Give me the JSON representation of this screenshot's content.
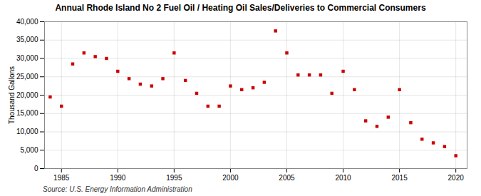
{
  "chart_data": {
    "type": "scatter",
    "title": "Annual Rhode Island No 2 Fuel Oil / Heating Oil Sales/Deliveries to Commercial Consumers",
    "ylabel": "Thousand Gallons",
    "annotations": [
      "Source: U.S. Energy Information Administration"
    ],
    "x": [
      1984,
      1985,
      1986,
      1987,
      1988,
      1989,
      1990,
      1991,
      1992,
      1993,
      1994,
      1995,
      1996,
      1997,
      1998,
      1999,
      2000,
      2001,
      2002,
      2003,
      2004,
      2005,
      2006,
      2007,
      2008,
      2009,
      2010,
      2011,
      2012,
      2013,
      2014,
      2015,
      2016,
      2017,
      2018,
      2019,
      2020
    ],
    "values": [
      19500,
      17000,
      28500,
      31500,
      30500,
      30000,
      26500,
      24500,
      23000,
      22500,
      24500,
      31500,
      24000,
      20500,
      17000,
      17000,
      22500,
      21500,
      22000,
      23500,
      37500,
      31500,
      25500,
      25500,
      25500,
      20500,
      26500,
      21500,
      13000,
      11500,
      14000,
      21500,
      12500,
      8000,
      7000,
      6000,
      3500
    ],
    "color": "#cc0000",
    "marker": "square",
    "xlim": [
      1983.5,
      2021
    ],
    "xticks": [
      1985,
      1990,
      1995,
      2000,
      2005,
      2010,
      2015,
      2020
    ],
    "ylim": [
      0,
      40000
    ],
    "yticks": [
      0,
      {
        "value": 5000,
        "label": "5,000"
      },
      {
        "value": 10000,
        "label": "10,000"
      },
      {
        "value": 15000,
        "label": "15,000"
      },
      {
        "value": 20000,
        "label": "20,000"
      },
      {
        "value": 25000,
        "label": "25,000"
      },
      {
        "value": 30000,
        "label": "30,000"
      },
      {
        "value": 35000,
        "label": "35,000"
      },
      {
        "value": 40000,
        "label": "40,000"
      }
    ],
    "grid": true
  }
}
